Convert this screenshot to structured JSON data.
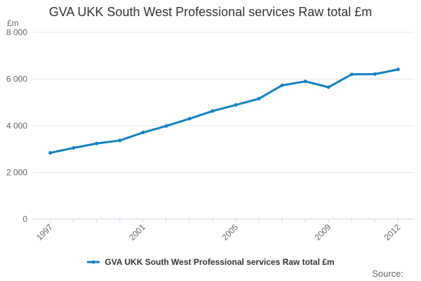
{
  "header": {
    "title": "GVA UKK South West Professional services Raw total £m"
  },
  "chart_data": {
    "type": "line",
    "title": "GVA UKK South West Professional services Raw total £m",
    "ylabel_unit": "£m",
    "xlabel": "",
    "x": [
      1997,
      1998,
      1999,
      2000,
      2001,
      2002,
      2003,
      2004,
      2005,
      2006,
      2007,
      2008,
      2009,
      2010,
      2011,
      2012
    ],
    "series": [
      {
        "name": "GVA UKK South West Professional services Raw total £m",
        "color": "#1280c4",
        "values": [
          2840,
          3050,
          3240,
          3370,
          3710,
          3990,
          4300,
          4630,
          4890,
          5160,
          5730,
          5900,
          5650,
          6200,
          6210,
          6410
        ]
      }
    ],
    "ylim": [
      0,
      8000
    ],
    "y_ticks": [
      0,
      2000,
      4000,
      6000,
      8000
    ],
    "y_tick_labels": [
      "0",
      "2 000",
      "4 000",
      "6 000",
      "8 000"
    ],
    "x_ticks_labeled": [
      "1997",
      "2001",
      "2005",
      "2009",
      "2012"
    ],
    "grid": true,
    "legend_position": "bottom",
    "marker": "circle"
  },
  "legend": {
    "label": "GVA UKK South West Professional services Raw total £m"
  },
  "footer": {
    "source_label": "Source:"
  },
  "colors": {
    "series": "#1280c4",
    "grid": "#e6e6e6",
    "axis": "#ccd6eb",
    "title_text": "#333333",
    "tick_text": "#666666",
    "legend_text": "#333333",
    "source_text": "#666666",
    "background": "#ffffff"
  }
}
